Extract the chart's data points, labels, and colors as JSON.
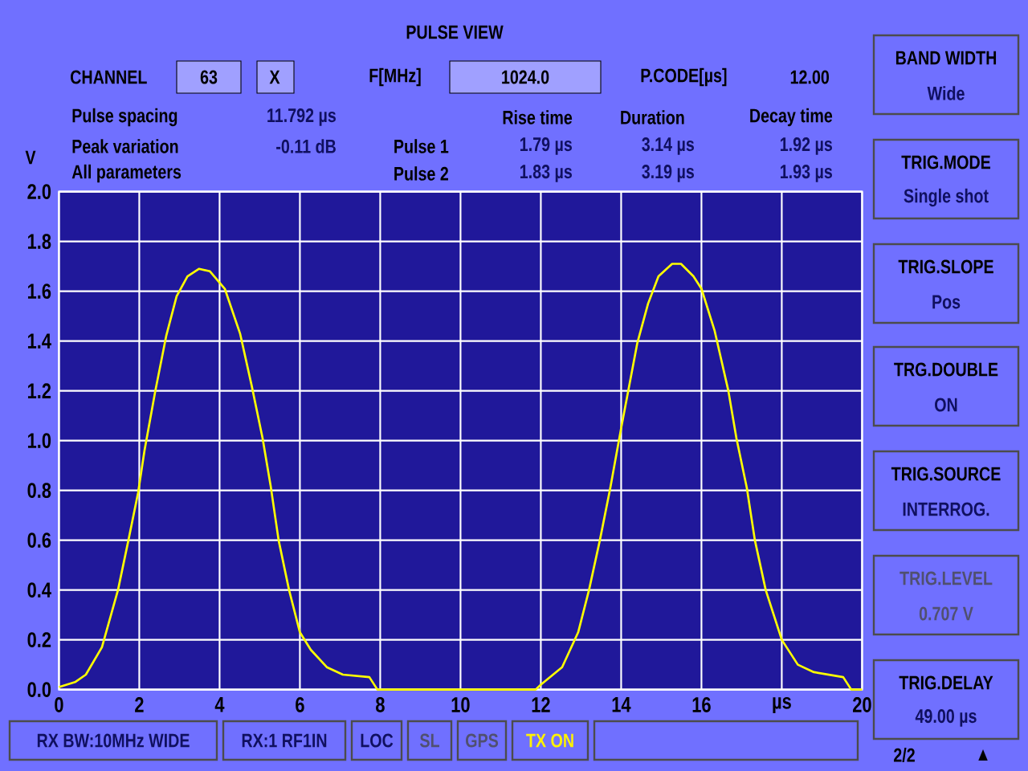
{
  "chart_data": {
    "type": "line",
    "title": "PULSE VIEW",
    "ylabel": "V",
    "x": [
      0,
      0.4,
      0.67,
      1.07,
      1.47,
      1.73,
      1.97,
      2.13,
      2.4,
      2.67,
      2.93,
      3.2,
      3.49,
      3.76,
      4.13,
      4.51,
      4.8,
      5.07,
      5.27,
      5.47,
      5.73,
      6.0,
      6.27,
      6.67,
      7.07,
      7.73,
      7.93,
      11.87,
      12.0,
      12.53,
      12.93,
      13.2,
      13.47,
      13.73,
      14.0,
      14.2,
      14.4,
      14.67,
      14.93,
      15.27,
      15.49,
      15.8,
      16.0,
      16.33,
      16.67,
      16.87,
      17.13,
      17.33,
      17.6,
      18.0,
      18.4,
      18.8,
      19.53,
      19.73,
      20
    ],
    "series": [
      {
        "color": "#ffff00",
        "values": [
          0.01,
          0.03,
          0.06,
          0.17,
          0.4,
          0.6,
          0.79,
          0.96,
          1.2,
          1.42,
          1.58,
          1.66,
          1.69,
          1.68,
          1.61,
          1.43,
          1.22,
          1.01,
          0.82,
          0.6,
          0.4,
          0.23,
          0.16,
          0.09,
          0.06,
          0.05,
          0.0,
          0.0,
          0.02,
          0.09,
          0.23,
          0.4,
          0.6,
          0.81,
          1.05,
          1.22,
          1.39,
          1.55,
          1.66,
          1.71,
          1.71,
          1.66,
          1.61,
          1.44,
          1.2,
          1.01,
          0.81,
          0.6,
          0.4,
          0.2,
          0.1,
          0.07,
          0.05,
          0.0,
          0.0
        ]
      }
    ],
    "xlim": [
      0,
      20
    ],
    "ylim": [
      0,
      2
    ],
    "xticks": [
      0,
      2,
      4,
      6,
      8,
      10,
      12,
      14,
      16,
      {
        "value": 18,
        "label": "µs"
      },
      20
    ],
    "yticks": [
      {
        "value": 0,
        "label": "0.0"
      },
      {
        "value": 0.2,
        "label": "0.2"
      },
      {
        "value": 0.4,
        "label": "0.4"
      },
      {
        "value": 0.6,
        "label": "0.6"
      },
      {
        "value": 0.8,
        "label": "0.8"
      },
      {
        "value": 1,
        "label": "1.0"
      },
      {
        "value": 1.2,
        "label": "1.2"
      },
      {
        "value": 1.4,
        "label": "1.4"
      },
      {
        "value": 1.6,
        "label": "1.6"
      },
      {
        "value": 1.8,
        "label": "1.8"
      },
      {
        "value": 2,
        "label": "2.0"
      }
    ],
    "grid": true,
    "marker": "none",
    "line_style": "solid",
    "annotations": [
      "CHANNEL",
      "63",
      "X",
      "F[MHz]",
      "1024.0",
      "P.CODE[µs]",
      "12.00",
      "Pulse spacing",
      "11.792 µs",
      "Peak variation",
      "-0.11 dB",
      "All parameters",
      "Rise time",
      "Duration",
      "Decay time",
      "Pulse 1",
      "1.79 µs",
      "3.14 µs",
      "1.92 µs",
      "Pulse 2",
      "1.83 µs",
      "3.19 µs",
      "1.93 µs",
      "BAND WIDTH",
      "Wide",
      "TRIG.MODE",
      "Single shot",
      "TRIG.SLOPE",
      "Pos",
      "TRG.DOUBLE",
      "ON",
      "TRIG.SOURCE",
      "INTERROG.",
      "TRIG.LEVEL",
      "0.707  V",
      "TRIG.DELAY",
      "49.00 µs",
      "2/2",
      "▲",
      "RX BW:10MHz WIDE",
      "RX:1 RF1IN",
      "LOC",
      "SL",
      "GPS",
      "TX ON"
    ]
  }
}
